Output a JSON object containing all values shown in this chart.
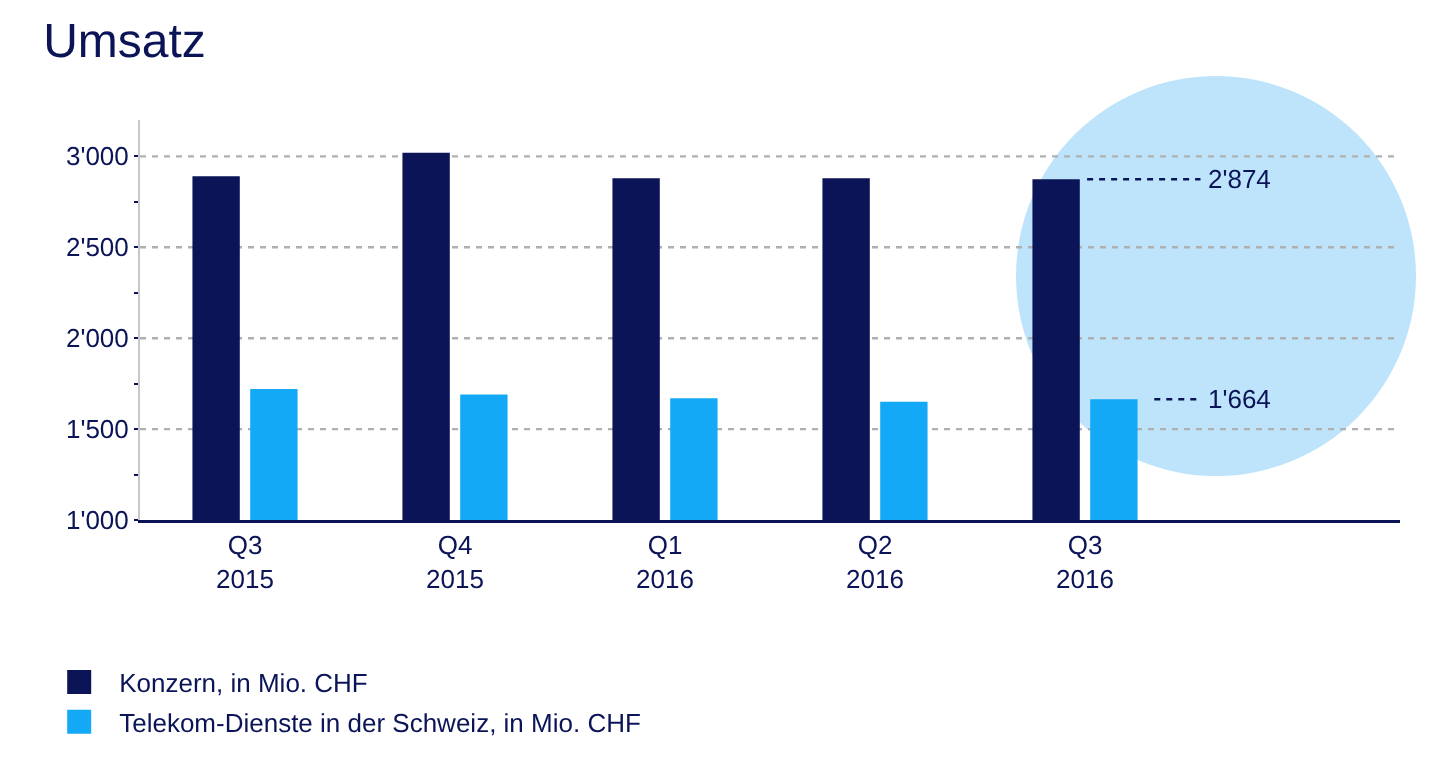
{
  "chart_data": {
    "type": "bar",
    "title": "Umsatz",
    "categories": [
      "Q3\n2015",
      "Q4\n2015",
      "Q1\n2016",
      "Q2\n2016",
      "Q3\n2016"
    ],
    "series": [
      {
        "name": "Konzern, in Mio. CHF",
        "color": "#0a1457",
        "values": [
          2890,
          3020,
          2880,
          2880,
          2874
        ],
        "value_labels": [
          null,
          null,
          null,
          null,
          "2'874"
        ]
      },
      {
        "name": "Telekom-Dienste in der Schweiz, in Mio. CHF",
        "color": "#14a9f7",
        "values": [
          1720,
          1690,
          1670,
          1650,
          1664
        ],
        "value_labels": [
          null,
          null,
          null,
          null,
          "1'664"
        ]
      }
    ],
    "ylim": [
      1000,
      3200
    ],
    "yticks": [
      {
        "value": 1000,
        "label": "1'000"
      },
      {
        "value": 1250,
        "label": null
      },
      {
        "value": 1500,
        "label": "1'500"
      },
      {
        "value": 1750,
        "label": null
      },
      {
        "value": 2000,
        "label": "2'000"
      },
      {
        "value": 2250,
        "label": null
      },
      {
        "value": 2500,
        "label": "2'500"
      },
      {
        "value": 2750,
        "label": null
      },
      {
        "value": 3000,
        "label": "3'000"
      }
    ],
    "grid": "y",
    "legend": "bottom left"
  }
}
